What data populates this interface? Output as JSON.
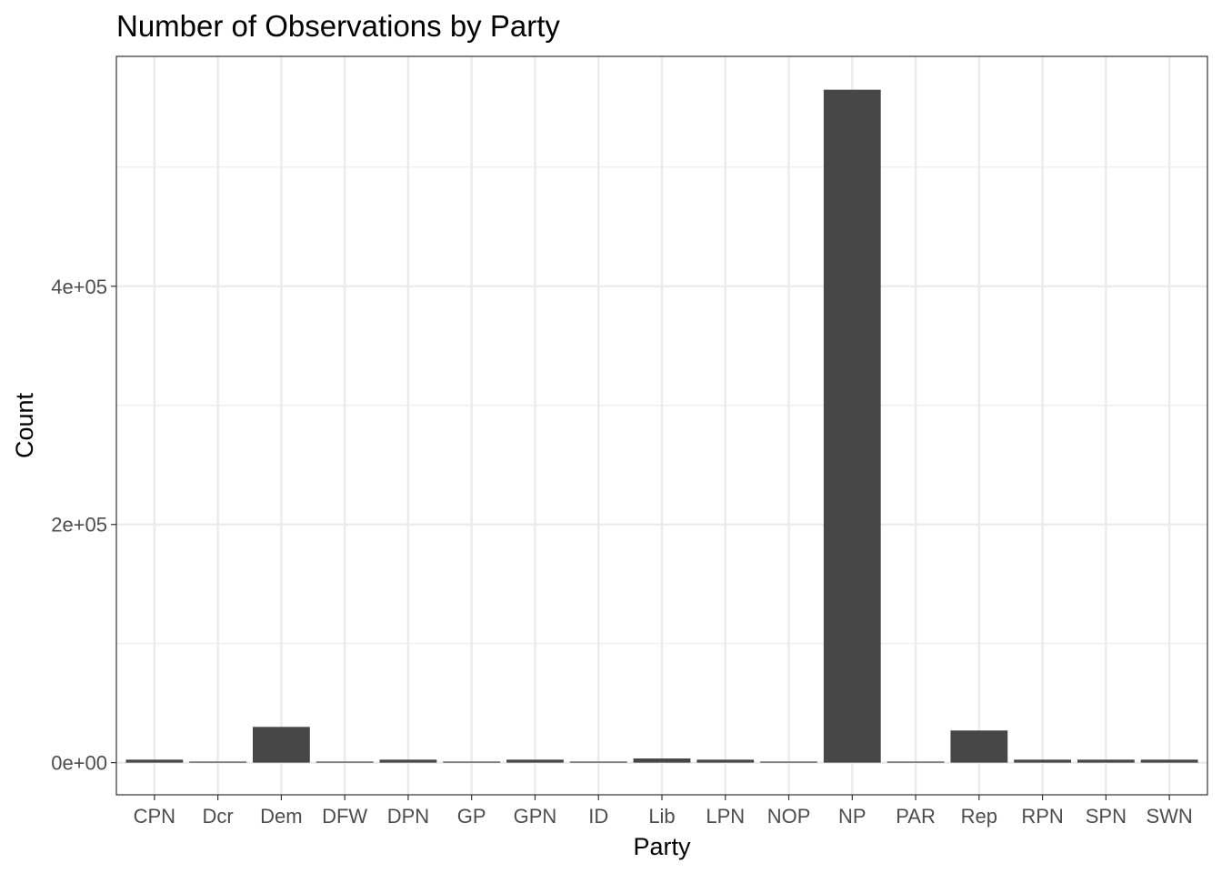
{
  "chart_data": {
    "type": "bar",
    "title": "Number of Observations by Party",
    "xlabel": "Party",
    "ylabel": "Count",
    "categories": [
      "CPN",
      "Dcr",
      "Dem",
      "DFW",
      "DPN",
      "GP",
      "GPN",
      "ID",
      "Lib",
      "LPN",
      "NOP",
      "NP",
      "PAR",
      "Rep",
      "RPN",
      "SPN",
      "SWN"
    ],
    "values": [
      2500,
      200,
      30000,
      300,
      2500,
      300,
      2500,
      200,
      3500,
      2500,
      500,
      565000,
      500,
      27000,
      2500,
      2500,
      2500
    ],
    "ylim": [
      -27000,
      593000
    ],
    "y_major_ticks": [
      0,
      200000,
      400000
    ],
    "y_tick_labels": [
      "0e+00",
      "2e+05",
      "4e+05"
    ],
    "y_minor_ticks": [
      100000,
      300000,
      500000
    ],
    "grid": true,
    "bar_color": "#474747",
    "grid_color": "#ebebeb",
    "theme": "bw"
  }
}
